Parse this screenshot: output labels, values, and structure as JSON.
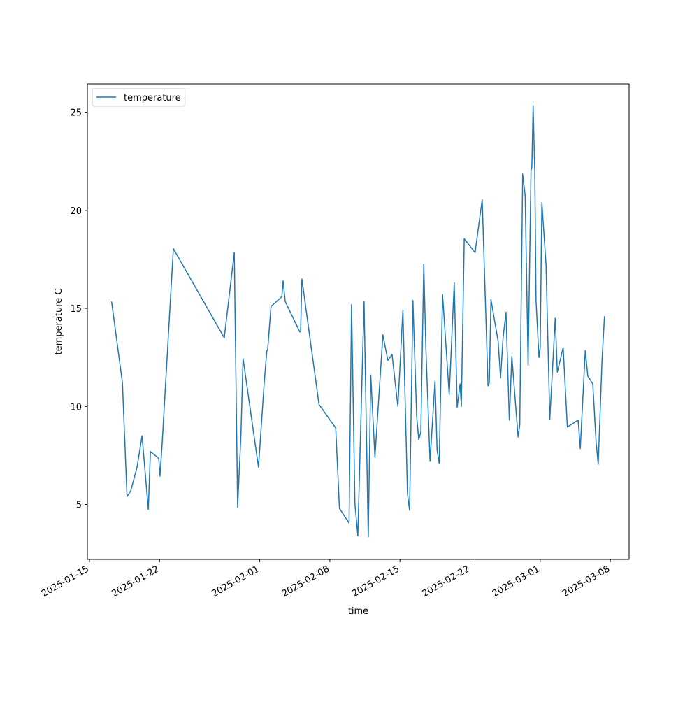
{
  "chart_data": {
    "type": "line",
    "xlabel": "time",
    "ylabel": "temperature C",
    "x": [
      "2025-01-17T05:00",
      "2025-01-18T07:00",
      "2025-01-18T18:00",
      "2025-01-19T03:00",
      "2025-01-19T18:00",
      "2025-01-20T06:00",
      "2025-01-20T21:00",
      "2025-01-21T02:00",
      "2025-01-21T22:00",
      "2025-01-22T01:00",
      "2025-01-22T06:00",
      "2025-01-23T09:00",
      "2025-01-28T11:00",
      "2025-01-29T11:00",
      "2025-01-29T19:00",
      "2025-01-30T03:00",
      "2025-01-30T08:00",
      "2025-01-31T21:00",
      "2025-02-01T11:00",
      "2025-02-01T17:00",
      "2025-02-01T19:00",
      "2025-02-02T03:00",
      "2025-02-03T05:00",
      "2025-02-03T08:00",
      "2025-02-03T13:00",
      "2025-02-05T00:00",
      "2025-02-05T02:00",
      "2025-02-05T05:00",
      "2025-02-06T22:00",
      "2025-02-08T14:00",
      "2025-02-08T23:00",
      "2025-02-09T22:00",
      "2025-02-10T04:00",
      "2025-02-10T12:00",
      "2025-02-10T19:00",
      "2025-02-11T10:00",
      "2025-02-11T20:00",
      "2025-02-12T02:00",
      "2025-02-12T12:00",
      "2025-02-13T07:00",
      "2025-02-13T19:00",
      "2025-02-14T05:00",
      "2025-02-14T19:00",
      "2025-02-15T07:00",
      "2025-02-15T18:00",
      "2025-02-15T23:00",
      "2025-02-16T07:00",
      "2025-02-16T16:00",
      "2025-02-16T21:00",
      "2025-02-17T02:00",
      "2025-02-17T09:00",
      "2025-02-17T14:00",
      "2025-02-18T00:00",
      "2025-02-18T12:00",
      "2025-02-18T17:00",
      "2025-02-18T22:00",
      "2025-02-19T06:00",
      "2025-02-19T22:00",
      "2025-02-20T10:00",
      "2025-02-20T17:00",
      "2025-02-21T00:00",
      "2025-02-21T03:00",
      "2025-02-21T10:00",
      "2025-02-22T12:00",
      "2025-02-23T05:00",
      "2025-02-23T19:00",
      "2025-02-23T22:00",
      "2025-02-24T02:00",
      "2025-02-24T19:00",
      "2025-02-25T01:00",
      "2025-02-25T07:00",
      "2025-02-25T14:00",
      "2025-02-25T22:00",
      "2025-02-26T04:00",
      "2025-02-26T19:00",
      "2025-02-26T23:00",
      "2025-02-27T06:00",
      "2025-02-27T12:00",
      "2025-02-27T19:00",
      "2025-02-28T02:00",
      "2025-02-28T04:00",
      "2025-02-28T07:00",
      "2025-02-28T11:00",
      "2025-02-28T14:00",
      "2025-02-28T21:00",
      "2025-03-01T00:00",
      "2025-03-01T04:00",
      "2025-03-01T14:00",
      "2025-03-01T23:00",
      "2025-03-02T12:00",
      "2025-03-02T17:00",
      "2025-03-03T07:00",
      "2025-03-03T17:00",
      "2025-03-04T19:00",
      "2025-03-05T00:00",
      "2025-03-05T12:00",
      "2025-03-05T18:00",
      "2025-03-06T06:00",
      "2025-03-06T14:00",
      "2025-03-06T19:00",
      "2025-03-07T04:00",
      "2025-03-07T10:00"
    ],
    "series": [
      {
        "name": "temperature",
        "color": "#1f77b4",
        "values": [
          15.35,
          11.2,
          5.4,
          5.7,
          6.9,
          8.5,
          4.75,
          7.7,
          7.35,
          6.45,
          8.05,
          18.05,
          13.5,
          17.85,
          4.85,
          8.6,
          12.45,
          6.9,
          11.3,
          12.85,
          12.9,
          15.1,
          15.6,
          16.4,
          15.35,
          13.8,
          13.85,
          16.5,
          10.1,
          8.9,
          4.8,
          4.05,
          15.2,
          5.05,
          3.4,
          15.35,
          3.35,
          11.6,
          7.4,
          13.65,
          12.35,
          12.65,
          10.0,
          14.9,
          5.55,
          4.7,
          15.4,
          9.5,
          8.3,
          8.7,
          17.25,
          13.0,
          7.2,
          11.3,
          7.75,
          7.1,
          15.7,
          10.6,
          16.3,
          9.95,
          11.15,
          10.0,
          18.55,
          17.85,
          20.55,
          11.05,
          11.2,
          15.45,
          13.35,
          11.45,
          13.5,
          14.8,
          9.3,
          12.55,
          8.45,
          9.05,
          21.85,
          20.75,
          12.1,
          22.05,
          22.2,
          25.35,
          22.05,
          15.4,
          12.5,
          13.0,
          20.4,
          17.2,
          9.35,
          14.5,
          11.75,
          13.0,
          8.95,
          9.3,
          7.85,
          12.85,
          11.55,
          11.15,
          8.15,
          7.05,
          12.3,
          14.6
        ]
      }
    ],
    "xlim": [
      "2025-01-14T19:00",
      "2025-03-09T21:00"
    ],
    "xticks": [
      "2025-01-15",
      "2025-01-22",
      "2025-02-01",
      "2025-02-08",
      "2025-02-15",
      "2025-02-22",
      "2025-03-01",
      "2025-03-08"
    ],
    "ylim": [
      2.2,
      26.45
    ],
    "yticks": [
      5,
      10,
      15,
      20,
      25
    ],
    "legend": "upper left",
    "grid": false
  }
}
